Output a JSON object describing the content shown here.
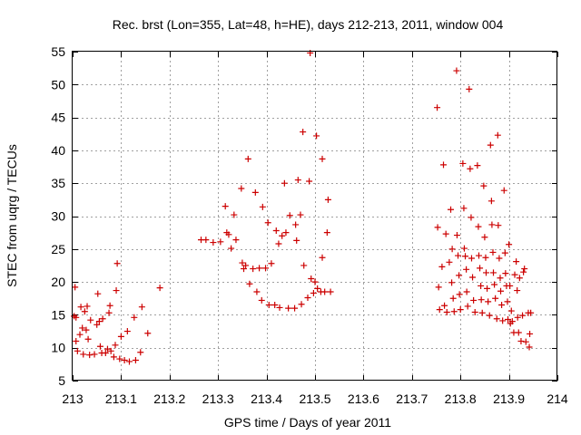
{
  "chart_data": {
    "type": "scatter",
    "title": "Rec. brst (Lon=355, Lat=48, h=HE), days 212-213, 2011, window 004",
    "xlabel": "GPS time / Days of year 2011",
    "ylabel": "STEC from uqrg / TECUs",
    "xlim": [
      213,
      214
    ],
    "ylim": [
      5,
      55
    ],
    "xticks": [
      213,
      213.1,
      213.2,
      213.3,
      213.4,
      213.5,
      213.6,
      213.7,
      213.8,
      213.9,
      214
    ],
    "xtick_labels": [
      "213",
      "213.1",
      "213.2",
      "213.3",
      "213.4",
      "213.5",
      "213.6",
      "213.7",
      "213.8",
      "213.9",
      "214"
    ],
    "yticks": [
      5,
      10,
      15,
      20,
      25,
      30,
      35,
      40,
      45,
      50,
      55
    ],
    "ytick_labels": [
      "5",
      "10",
      "15",
      "20",
      "25",
      "30",
      "35",
      "40",
      "45",
      "50",
      "55"
    ],
    "grid": true,
    "marker": "+",
    "color": "#cc0000",
    "series": [
      {
        "name": "STEC",
        "points": [
          [
            213.003,
            14.8
          ],
          [
            213.005,
            19.2
          ],
          [
            213.007,
            14.6
          ],
          [
            213.007,
            11.0
          ],
          [
            213.01,
            9.5
          ],
          [
            213.015,
            12.0
          ],
          [
            213.017,
            16.2
          ],
          [
            213.02,
            13.0
          ],
          [
            213.022,
            9.0
          ],
          [
            213.025,
            15.5
          ],
          [
            213.028,
            12.7
          ],
          [
            213.03,
            16.3
          ],
          [
            213.032,
            11.3
          ],
          [
            213.035,
            8.9
          ],
          [
            213.037,
            14.2
          ],
          [
            213.045,
            9.0
          ],
          [
            213.05,
            13.5
          ],
          [
            213.052,
            18.2
          ],
          [
            213.055,
            14.0
          ],
          [
            213.057,
            10.2
          ],
          [
            213.06,
            9.2
          ],
          [
            213.062,
            14.4
          ],
          [
            213.068,
            9.2
          ],
          [
            213.072,
            9.8
          ],
          [
            213.075,
            15.3
          ],
          [
            213.077,
            16.4
          ],
          [
            213.079,
            9.5
          ],
          [
            213.085,
            8.6
          ],
          [
            213.088,
            10.4
          ],
          [
            213.09,
            18.7
          ],
          [
            213.092,
            22.8
          ],
          [
            213.097,
            8.3
          ],
          [
            213.1,
            11.7
          ],
          [
            213.107,
            8.1
          ],
          [
            213.113,
            12.5
          ],
          [
            213.117,
            7.9
          ],
          [
            213.127,
            14.6
          ],
          [
            213.13,
            8.1
          ],
          [
            213.14,
            9.3
          ],
          [
            213.143,
            16.2
          ],
          [
            213.155,
            12.2
          ],
          [
            213.18,
            19.1
          ],
          [
            213.265,
            26.4
          ],
          [
            213.275,
            26.4
          ],
          [
            213.29,
            26.0
          ],
          [
            213.305,
            26.1
          ],
          [
            213.315,
            31.5
          ],
          [
            213.318,
            27.5
          ],
          [
            213.322,
            27.2
          ],
          [
            213.327,
            25.1
          ],
          [
            213.333,
            30.2
          ],
          [
            213.337,
            26.4
          ],
          [
            213.348,
            34.2
          ],
          [
            213.35,
            22.9
          ],
          [
            213.353,
            22.0
          ],
          [
            213.357,
            22.5
          ],
          [
            213.362,
            38.7
          ],
          [
            213.365,
            19.7
          ],
          [
            213.372,
            22.0
          ],
          [
            213.377,
            33.6
          ],
          [
            213.38,
            18.5
          ],
          [
            213.385,
            22.1
          ],
          [
            213.39,
            17.2
          ],
          [
            213.392,
            31.4
          ],
          [
            213.398,
            22.1
          ],
          [
            213.403,
            29.0
          ],
          [
            213.405,
            16.5
          ],
          [
            213.41,
            22.8
          ],
          [
            213.417,
            16.5
          ],
          [
            213.42,
            27.8
          ],
          [
            213.425,
            25.8
          ],
          [
            213.427,
            16.1
          ],
          [
            213.432,
            27.0
          ],
          [
            213.437,
            35.0
          ],
          [
            213.44,
            27.5
          ],
          [
            213.445,
            16.0
          ],
          [
            213.448,
            30.1
          ],
          [
            213.458,
            16.0
          ],
          [
            213.46,
            28.7
          ],
          [
            213.462,
            26.3
          ],
          [
            213.465,
            35.5
          ],
          [
            213.47,
            30.2
          ],
          [
            213.472,
            16.6
          ],
          [
            213.475,
            42.8
          ],
          [
            213.477,
            22.5
          ],
          [
            213.485,
            17.6
          ],
          [
            213.488,
            35.3
          ],
          [
            213.49,
            54.8
          ],
          [
            213.492,
            20.5
          ],
          [
            213.497,
            18.3
          ],
          [
            213.5,
            20.0
          ],
          [
            213.503,
            42.2
          ],
          [
            213.505,
            19.0
          ],
          [
            213.512,
            18.5
          ],
          [
            213.515,
            38.7
          ],
          [
            213.515,
            23.7
          ],
          [
            213.52,
            18.5
          ],
          [
            213.525,
            27.5
          ],
          [
            213.527,
            32.5
          ],
          [
            213.532,
            18.5
          ],
          [
            213.752,
            46.5
          ],
          [
            213.753,
            28.3
          ],
          [
            213.755,
            19.2
          ],
          [
            213.757,
            15.8
          ],
          [
            213.762,
            22.3
          ],
          [
            213.765,
            37.8
          ],
          [
            213.767,
            16.4
          ],
          [
            213.77,
            27.3
          ],
          [
            213.772,
            15.4
          ],
          [
            213.777,
            23.0
          ],
          [
            213.78,
            31.0
          ],
          [
            213.782,
            19.9
          ],
          [
            213.783,
            25.0
          ],
          [
            213.785,
            17.5
          ],
          [
            213.787,
            15.5
          ],
          [
            213.792,
            52.1
          ],
          [
            213.793,
            27.1
          ],
          [
            213.795,
            24.0
          ],
          [
            213.797,
            21.0
          ],
          [
            213.798,
            18.1
          ],
          [
            213.8,
            15.8
          ],
          [
            213.805,
            38.0
          ],
          [
            213.807,
            31.2
          ],
          [
            213.808,
            25.1
          ],
          [
            213.81,
            23.9
          ],
          [
            213.812,
            21.9
          ],
          [
            213.813,
            18.5
          ],
          [
            213.815,
            16.3
          ],
          [
            213.818,
            49.3
          ],
          [
            213.82,
            37.2
          ],
          [
            213.822,
            29.8
          ],
          [
            213.823,
            23.6
          ],
          [
            213.825,
            20.7
          ],
          [
            213.827,
            17.2
          ],
          [
            213.83,
            15.4
          ],
          [
            213.835,
            37.7
          ],
          [
            213.837,
            28.4
          ],
          [
            213.838,
            24.0
          ],
          [
            213.84,
            22.1
          ],
          [
            213.842,
            19.4
          ],
          [
            213.843,
            17.3
          ],
          [
            213.845,
            15.3
          ],
          [
            213.848,
            34.6
          ],
          [
            213.85,
            26.8
          ],
          [
            213.852,
            23.7
          ],
          [
            213.853,
            21.4
          ],
          [
            213.855,
            19.0
          ],
          [
            213.857,
            17.0
          ],
          [
            213.86,
            14.9
          ],
          [
            213.862,
            40.8
          ],
          [
            213.864,
            32.3
          ],
          [
            213.865,
            28.7
          ],
          [
            213.867,
            24.5
          ],
          [
            213.868,
            21.4
          ],
          [
            213.87,
            19.6
          ],
          [
            213.872,
            17.5
          ],
          [
            213.875,
            14.4
          ],
          [
            213.877,
            42.3
          ],
          [
            213.878,
            28.6
          ],
          [
            213.88,
            23.6
          ],
          [
            213.882,
            20.6
          ],
          [
            213.883,
            18.6
          ],
          [
            213.885,
            16.5
          ],
          [
            213.887,
            14.1
          ],
          [
            213.89,
            33.9
          ],
          [
            213.892,
            24.4
          ],
          [
            213.893,
            21.3
          ],
          [
            213.895,
            19.4
          ],
          [
            213.897,
            17.0
          ],
          [
            213.898,
            14.3
          ],
          [
            213.9,
            25.7
          ],
          [
            213.902,
            19.4
          ],
          [
            213.903,
            13.7
          ],
          [
            213.905,
            15.6
          ],
          [
            213.907,
            14.0
          ],
          [
            213.91,
            12.3
          ],
          [
            213.912,
            21.1
          ],
          [
            213.915,
            23.1
          ],
          [
            213.917,
            18.7
          ],
          [
            213.918,
            14.6
          ],
          [
            213.92,
            12.3
          ],
          [
            213.922,
            20.6
          ],
          [
            213.925,
            11.0
          ],
          [
            213.928,
            14.9
          ],
          [
            213.93,
            21.5
          ],
          [
            213.932,
            22.0
          ],
          [
            213.935,
            10.9
          ],
          [
            213.94,
            15.3
          ],
          [
            213.942,
            10.1
          ],
          [
            213.943,
            12.1
          ],
          [
            213.945,
            15.3
          ]
        ]
      }
    ]
  }
}
